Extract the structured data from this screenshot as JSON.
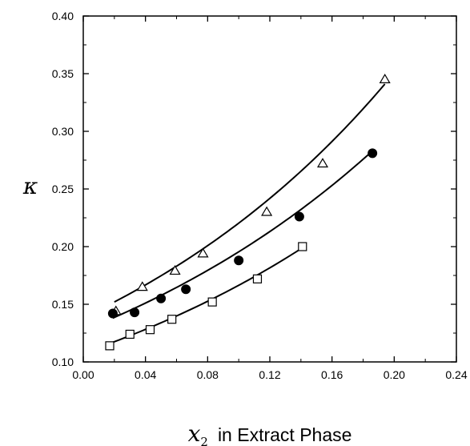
{
  "chart_data": {
    "type": "scatter",
    "title": "",
    "xlabel": {
      "symbol": "x",
      "subscript": "2",
      "text": "in Extract Phase"
    },
    "ylabel": "κ",
    "xlim": [
      0.0,
      0.24
    ],
    "ylim": [
      0.1,
      0.4
    ],
    "x_ticks": [
      "0.00",
      "0.04",
      "0.08",
      "0.12",
      "0.16",
      "0.20",
      "0.24"
    ],
    "y_ticks": [
      "0.10",
      "0.15",
      "0.20",
      "0.25",
      "0.30",
      "0.35",
      "0.40"
    ],
    "grid": false,
    "legend": "none",
    "series": [
      {
        "marker": "triangle-open",
        "x": [
          0.021,
          0.038,
          0.059,
          0.077,
          0.118,
          0.154,
          0.194
        ],
        "y": [
          0.144,
          0.165,
          0.179,
          0.194,
          0.23,
          0.272,
          0.345
        ],
        "fit_x": [
          0.02,
          0.194
        ],
        "fit_y": [
          0.152,
          0.341
        ]
      },
      {
        "marker": "circle-filled",
        "x": [
          0.019,
          0.033,
          0.05,
          0.066,
          0.1,
          0.139,
          0.186
        ],
        "y": [
          0.142,
          0.143,
          0.155,
          0.163,
          0.188,
          0.226,
          0.281
        ],
        "fit_x": [
          0.019,
          0.186
        ],
        "fit_y": [
          0.138,
          0.283
        ]
      },
      {
        "marker": "square-open",
        "x": [
          0.017,
          0.03,
          0.043,
          0.057,
          0.083,
          0.112,
          0.141
        ],
        "y": [
          0.114,
          0.124,
          0.128,
          0.137,
          0.152,
          0.172,
          0.2
        ],
        "fit_x": [
          0.017,
          0.141
        ],
        "fit_y": [
          0.116,
          0.199
        ]
      }
    ]
  }
}
